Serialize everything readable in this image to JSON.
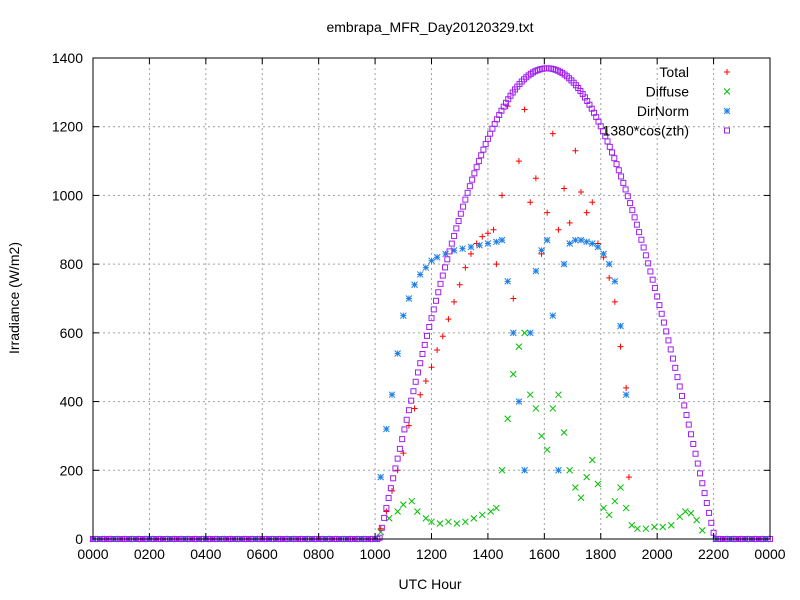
{
  "chart_data": {
    "type": "scatter",
    "title": "embrapa_MFR_Day20120329.txt",
    "xlabel": "UTC Hour",
    "ylabel": "Irradiance (W/m2)",
    "xlim": [
      0,
      24
    ],
    "ylim": [
      0,
      1400
    ],
    "grid": true,
    "legend_position": "top-right",
    "x_ticks": [
      {
        "v": 0,
        "label": "0000"
      },
      {
        "v": 2,
        "label": "0200"
      },
      {
        "v": 4,
        "label": "0400"
      },
      {
        "v": 6,
        "label": "0600"
      },
      {
        "v": 8,
        "label": "0800"
      },
      {
        "v": 10,
        "label": "1000"
      },
      {
        "v": 12,
        "label": "1200"
      },
      {
        "v": 14,
        "label": "1400"
      },
      {
        "v": 16,
        "label": "1600"
      },
      {
        "v": 18,
        "label": "1800"
      },
      {
        "v": 20,
        "label": "2000"
      },
      {
        "v": 22,
        "label": "2200"
      },
      {
        "v": 24,
        "label": "0000"
      }
    ],
    "y_ticks": [
      {
        "v": 0,
        "label": "0"
      },
      {
        "v": 200,
        "label": "200"
      },
      {
        "v": 400,
        "label": "400"
      },
      {
        "v": 600,
        "label": "600"
      },
      {
        "v": 800,
        "label": "800"
      },
      {
        "v": 1000,
        "label": "1000"
      },
      {
        "v": 1200,
        "label": "1200"
      },
      {
        "v": 1400,
        "label": "1400"
      }
    ],
    "series": [
      {
        "name": "Total",
        "color": "#ff0000",
        "marker": "plus",
        "points": [
          [
            10.2,
            30
          ],
          [
            10.4,
            80
          ],
          [
            10.6,
            140
          ],
          [
            10.8,
            200
          ],
          [
            11.0,
            250
          ],
          [
            11.2,
            330
          ],
          [
            11.4,
            380
          ],
          [
            11.6,
            420
          ],
          [
            11.8,
            460
          ],
          [
            12.0,
            500
          ],
          [
            12.2,
            550
          ],
          [
            12.4,
            590
          ],
          [
            12.6,
            640
          ],
          [
            12.8,
            690
          ],
          [
            13.0,
            740
          ],
          [
            13.2,
            790
          ],
          [
            13.4,
            830
          ],
          [
            13.6,
            860
          ],
          [
            13.8,
            880
          ],
          [
            14.0,
            890
          ],
          [
            14.2,
            900
          ],
          [
            14.3,
            800
          ],
          [
            14.5,
            1000
          ],
          [
            14.7,
            1260
          ],
          [
            14.9,
            700
          ],
          [
            15.1,
            1100
          ],
          [
            15.3,
            1250
          ],
          [
            15.5,
            980
          ],
          [
            15.7,
            1050
          ],
          [
            15.9,
            830
          ],
          [
            16.1,
            950
          ],
          [
            16.3,
            1180
          ],
          [
            16.5,
            900
          ],
          [
            16.7,
            1020
          ],
          [
            16.9,
            920
          ],
          [
            17.1,
            1130
          ],
          [
            17.3,
            1010
          ],
          [
            17.5,
            950
          ],
          [
            17.7,
            980
          ],
          [
            17.9,
            860
          ],
          [
            18.1,
            820
          ],
          [
            18.3,
            760
          ],
          [
            18.5,
            690
          ],
          [
            18.7,
            560
          ],
          [
            18.9,
            440
          ],
          [
            19.0,
            180
          ]
        ]
      },
      {
        "name": "Diffuse",
        "color": "#00c000",
        "marker": "cross",
        "points": [
          [
            10.2,
            20
          ],
          [
            10.5,
            60
          ],
          [
            10.8,
            80
          ],
          [
            11.0,
            100
          ],
          [
            11.3,
            110
          ],
          [
            11.5,
            80
          ],
          [
            11.8,
            60
          ],
          [
            12.0,
            50
          ],
          [
            12.3,
            45
          ],
          [
            12.6,
            50
          ],
          [
            12.9,
            45
          ],
          [
            13.2,
            50
          ],
          [
            13.5,
            60
          ],
          [
            13.8,
            70
          ],
          [
            14.1,
            80
          ],
          [
            14.3,
            90
          ],
          [
            14.5,
            200
          ],
          [
            14.7,
            350
          ],
          [
            14.9,
            480
          ],
          [
            15.1,
            560
          ],
          [
            15.3,
            600
          ],
          [
            15.5,
            420
          ],
          [
            15.7,
            380
          ],
          [
            15.9,
            300
          ],
          [
            16.1,
            260
          ],
          [
            16.3,
            380
          ],
          [
            16.5,
            420
          ],
          [
            16.7,
            310
          ],
          [
            16.9,
            200
          ],
          [
            17.1,
            150
          ],
          [
            17.3,
            120
          ],
          [
            17.5,
            180
          ],
          [
            17.7,
            230
          ],
          [
            17.9,
            160
          ],
          [
            18.1,
            90
          ],
          [
            18.3,
            70
          ],
          [
            18.5,
            110
          ],
          [
            18.7,
            150
          ],
          [
            18.9,
            90
          ],
          [
            19.1,
            40
          ],
          [
            19.3,
            30
          ],
          [
            19.6,
            30
          ],
          [
            19.9,
            35
          ],
          [
            20.2,
            35
          ],
          [
            20.5,
            40
          ],
          [
            20.8,
            65
          ],
          [
            21.0,
            80
          ],
          [
            21.2,
            75
          ],
          [
            21.4,
            55
          ],
          [
            21.6,
            25
          ]
        ]
      },
      {
        "name": "DirNorm",
        "color": "#1e7fe6",
        "marker": "star",
        "points": [
          [
            10.2,
            180
          ],
          [
            10.4,
            320
          ],
          [
            10.6,
            420
          ],
          [
            10.8,
            540
          ],
          [
            11.0,
            650
          ],
          [
            11.2,
            700
          ],
          [
            11.4,
            740
          ],
          [
            11.6,
            770
          ],
          [
            11.8,
            790
          ],
          [
            12.0,
            810
          ],
          [
            12.2,
            820
          ],
          [
            12.5,
            830
          ],
          [
            12.8,
            840
          ],
          [
            13.1,
            845
          ],
          [
            13.4,
            850
          ],
          [
            13.7,
            855
          ],
          [
            14.0,
            860
          ],
          [
            14.3,
            865
          ],
          [
            14.5,
            870
          ],
          [
            14.7,
            750
          ],
          [
            14.9,
            600
          ],
          [
            15.1,
            400
          ],
          [
            15.3,
            200
          ],
          [
            15.5,
            600
          ],
          [
            15.7,
            780
          ],
          [
            15.9,
            840
          ],
          [
            16.1,
            870
          ],
          [
            16.3,
            650
          ],
          [
            16.5,
            200
          ],
          [
            16.7,
            800
          ],
          [
            16.9,
            860
          ],
          [
            17.1,
            870
          ],
          [
            17.3,
            870
          ],
          [
            17.5,
            865
          ],
          [
            17.7,
            860
          ],
          [
            17.9,
            850
          ],
          [
            18.1,
            830
          ],
          [
            18.3,
            800
          ],
          [
            18.5,
            750
          ],
          [
            18.7,
            620
          ],
          [
            18.9,
            420
          ]
        ]
      },
      {
        "name": "1380*cos(zth)",
        "color": "#a020f0",
        "marker": "square",
        "curve": {
          "peak": 1370,
          "center": 16.1,
          "sunrise": 10.15,
          "sunset": 22.05
        }
      }
    ]
  }
}
